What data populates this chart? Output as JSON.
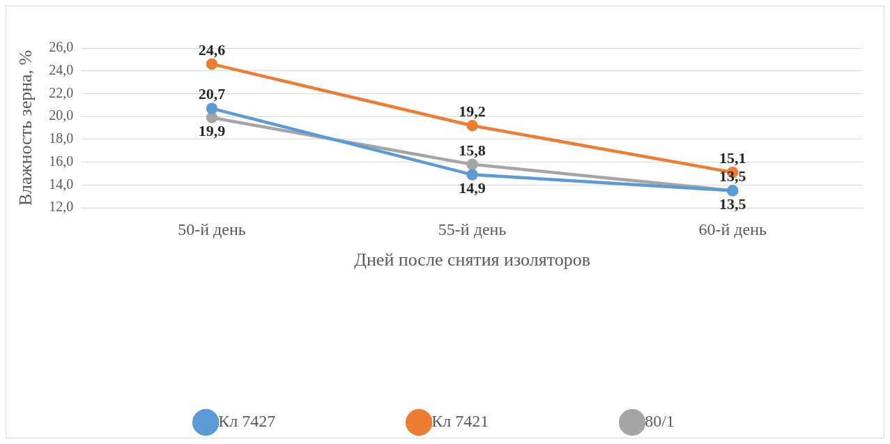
{
  "chart_data": {
    "type": "line",
    "xlabel": "Дней после снятия изоляторов",
    "ylabel": "Влажность зерна, %",
    "categories": [
      "50-й день",
      "55-й день",
      "60-й день"
    ],
    "series": [
      {
        "name": "Кл 7427",
        "color": "#5b9bd5",
        "values": [
          20.7,
          14.9,
          13.5
        ],
        "value_labels": [
          "20,7",
          "14,9",
          "13,5"
        ]
      },
      {
        "name": "Кл 7421",
        "color": "#ed7d31",
        "values": [
          24.6,
          19.2,
          15.1
        ],
        "value_labels": [
          "24,6",
          "19,2",
          "15,1"
        ]
      },
      {
        "name": "80/1",
        "color": "#a5a5a5",
        "values": [
          19.9,
          15.8,
          13.5
        ],
        "value_labels": [
          "19,9",
          "15,8",
          "13,5"
        ]
      }
    ],
    "ylim": [
      12,
      26
    ],
    "yticks": [
      {
        "value": 12,
        "label": "12,0"
      },
      {
        "value": 14,
        "label": "14,0"
      },
      {
        "value": 16,
        "label": "16,0"
      },
      {
        "value": 18,
        "label": "18,0"
      },
      {
        "value": 20,
        "label": "20,0"
      },
      {
        "value": 22,
        "label": "22,0"
      },
      {
        "value": 24,
        "label": "24,0"
      },
      {
        "value": 26,
        "label": "26,0"
      }
    ],
    "grid": "y",
    "legend": "bottom",
    "marker": "circle",
    "line_style": "solid"
  }
}
